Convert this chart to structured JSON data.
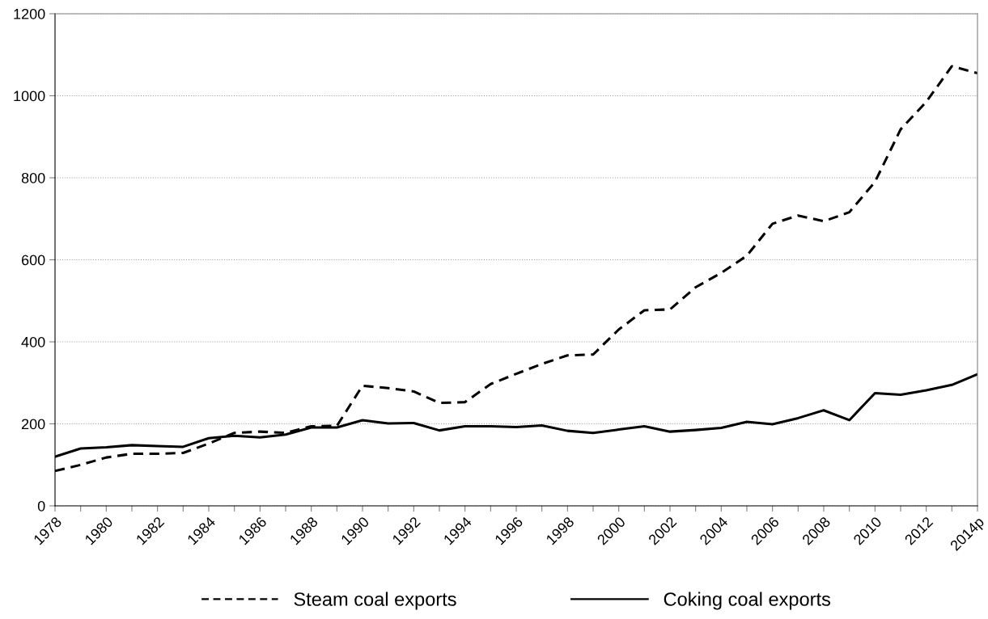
{
  "chart_data": {
    "type": "line",
    "categories": [
      "1978",
      null,
      "1980",
      null,
      "1982",
      null,
      "1984",
      null,
      "1986",
      null,
      "1988",
      null,
      "1990",
      null,
      "1992",
      null,
      "1994",
      null,
      "1996",
      null,
      "1998",
      null,
      "2000",
      null,
      "2002",
      null,
      "2004",
      null,
      "2006",
      null,
      "2008",
      null,
      "2010",
      null,
      "2012",
      null,
      "2014p"
    ],
    "series": [
      {
        "name": "Steam coal exports",
        "color": "#000000",
        "line_style": "dashed",
        "values": [
          85,
          100,
          118,
          127,
          127,
          129,
          152,
          178,
          181,
          178,
          194,
          195,
          293,
          287,
          279,
          251,
          253,
          297,
          322,
          346,
          367,
          369,
          430,
          477,
          479,
          533,
          568,
          610,
          688,
          708,
          694,
          716,
          790,
          918,
          985,
          1072,
          1055
        ]
      },
      {
        "name": "Coking coal exports",
        "color": "#000000",
        "line_style": "solid",
        "values": [
          120,
          140,
          143,
          148,
          146,
          144,
          165,
          171,
          167,
          174,
          191,
          191,
          209,
          201,
          202,
          184,
          194,
          194,
          192,
          196,
          183,
          178,
          186,
          194,
          181,
          185,
          190,
          205,
          199,
          214,
          233,
          209,
          275,
          271,
          282,
          295,
          321
        ]
      }
    ],
    "ylim": [
      0,
      1200
    ],
    "yticks": [
      0,
      200,
      400,
      600,
      800,
      1000,
      1200
    ],
    "grid": "y",
    "legend": "bottom",
    "marker": "none"
  }
}
